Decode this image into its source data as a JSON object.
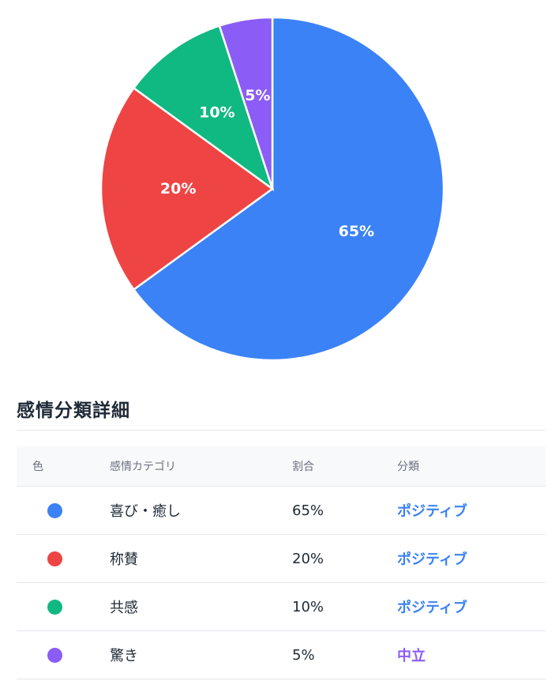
{
  "chart_data": {
    "type": "pie",
    "categories": [
      "喜び・癒し",
      "称賛",
      "共感",
      "驚き"
    ],
    "values": [
      65,
      20,
      10,
      5
    ],
    "colors": [
      "#3b82f6",
      "#ef4444",
      "#10b981",
      "#8b5cf6"
    ],
    "labels": [
      "65%",
      "20%",
      "10%",
      "5%"
    ],
    "start_angle": "12 o'clock",
    "direction": "clockwise"
  },
  "section": {
    "title": "感情分類詳細"
  },
  "table": {
    "headers": {
      "color": "色",
      "category": "感情カテゴリ",
      "rate": "割合",
      "classification": "分類"
    },
    "rows": [
      {
        "color": "#3b82f6",
        "category": "喜び・癒し",
        "rate": "65%",
        "classification": "ポジティブ",
        "classification_color": "#3b82f6"
      },
      {
        "color": "#ef4444",
        "category": "称賛",
        "rate": "20%",
        "classification": "ポジティブ",
        "classification_color": "#3b82f6"
      },
      {
        "color": "#10b981",
        "category": "共感",
        "rate": "10%",
        "classification": "ポジティブ",
        "classification_color": "#3b82f6"
      },
      {
        "color": "#8b5cf6",
        "category": "驚き",
        "rate": "5%",
        "classification": "中立",
        "classification_color": "#8b5cf6"
      }
    ]
  }
}
